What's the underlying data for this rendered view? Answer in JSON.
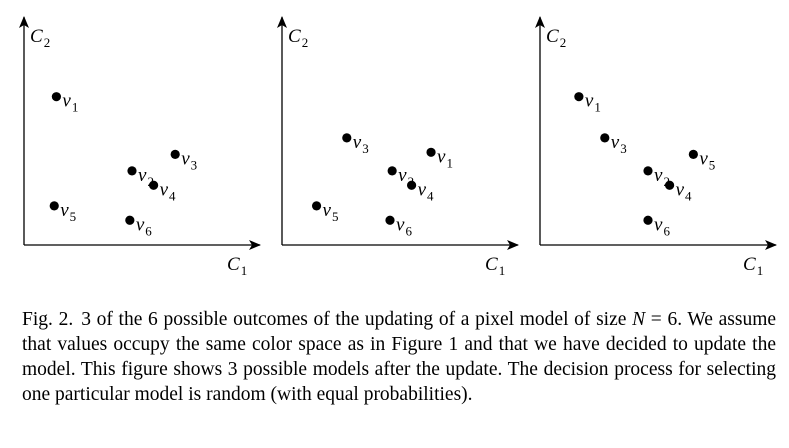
{
  "axes": {
    "x_label": "C",
    "x_sub": "1",
    "y_label": "C",
    "y_sub": "2"
  },
  "chart_data": [
    {
      "type": "scatter",
      "title": "",
      "xlabel": "C1",
      "ylabel": "C2",
      "xlim": [
        0,
        10
      ],
      "ylim": [
        0,
        10
      ],
      "grid": false,
      "points": [
        {
          "label": "v",
          "sub": "1",
          "x": 1.5,
          "y": 7.2
        },
        {
          "label": "v",
          "sub": "2",
          "x": 5.0,
          "y": 3.6
        },
        {
          "label": "v",
          "sub": "3",
          "x": 7.0,
          "y": 4.4
        },
        {
          "label": "v",
          "sub": "4",
          "x": 6.0,
          "y": 2.9
        },
        {
          "label": "v",
          "sub": "5",
          "x": 1.4,
          "y": 1.9
        },
        {
          "label": "v",
          "sub": "6",
          "x": 4.9,
          "y": 1.2
        }
      ]
    },
    {
      "type": "scatter",
      "title": "",
      "xlabel": "C1",
      "ylabel": "C2",
      "xlim": [
        0,
        10
      ],
      "ylim": [
        0,
        10
      ],
      "grid": false,
      "points": [
        {
          "label": "v",
          "sub": "1",
          "x": 6.9,
          "y": 4.5
        },
        {
          "label": "v",
          "sub": "2",
          "x": 5.1,
          "y": 3.6
        },
        {
          "label": "v",
          "sub": "3",
          "x": 3.0,
          "y": 5.2
        },
        {
          "label": "v",
          "sub": "4",
          "x": 6.0,
          "y": 2.9
        },
        {
          "label": "v",
          "sub": "5",
          "x": 1.6,
          "y": 1.9
        },
        {
          "label": "v",
          "sub": "6",
          "x": 5.0,
          "y": 1.2
        }
      ]
    },
    {
      "type": "scatter",
      "title": "",
      "xlabel": "C1",
      "ylabel": "C2",
      "xlim": [
        0,
        10
      ],
      "ylim": [
        0,
        10
      ],
      "grid": false,
      "points": [
        {
          "label": "v",
          "sub": "1",
          "x": 1.8,
          "y": 7.2
        },
        {
          "label": "v",
          "sub": "2",
          "x": 5.0,
          "y": 3.6
        },
        {
          "label": "v",
          "sub": "3",
          "x": 3.0,
          "y": 5.2
        },
        {
          "label": "v",
          "sub": "4",
          "x": 6.0,
          "y": 2.9
        },
        {
          "label": "v",
          "sub": "5",
          "x": 7.1,
          "y": 4.4
        },
        {
          "label": "v",
          "sub": "6",
          "x": 5.0,
          "y": 1.2
        }
      ]
    }
  ],
  "caption": {
    "label": "Fig. 2.",
    "text_1": "3 of the 6 possible outcomes of the updating of a pixel model of size",
    "math_var": "N",
    "math_rest": " = 6",
    "text_2": ". We assume that values occupy the same color space as in Figure 1 and that we have decided to update the model. This figure shows 3 possible models after the update. The decision process for selecting one particular model is random (with equal probabilities)."
  }
}
